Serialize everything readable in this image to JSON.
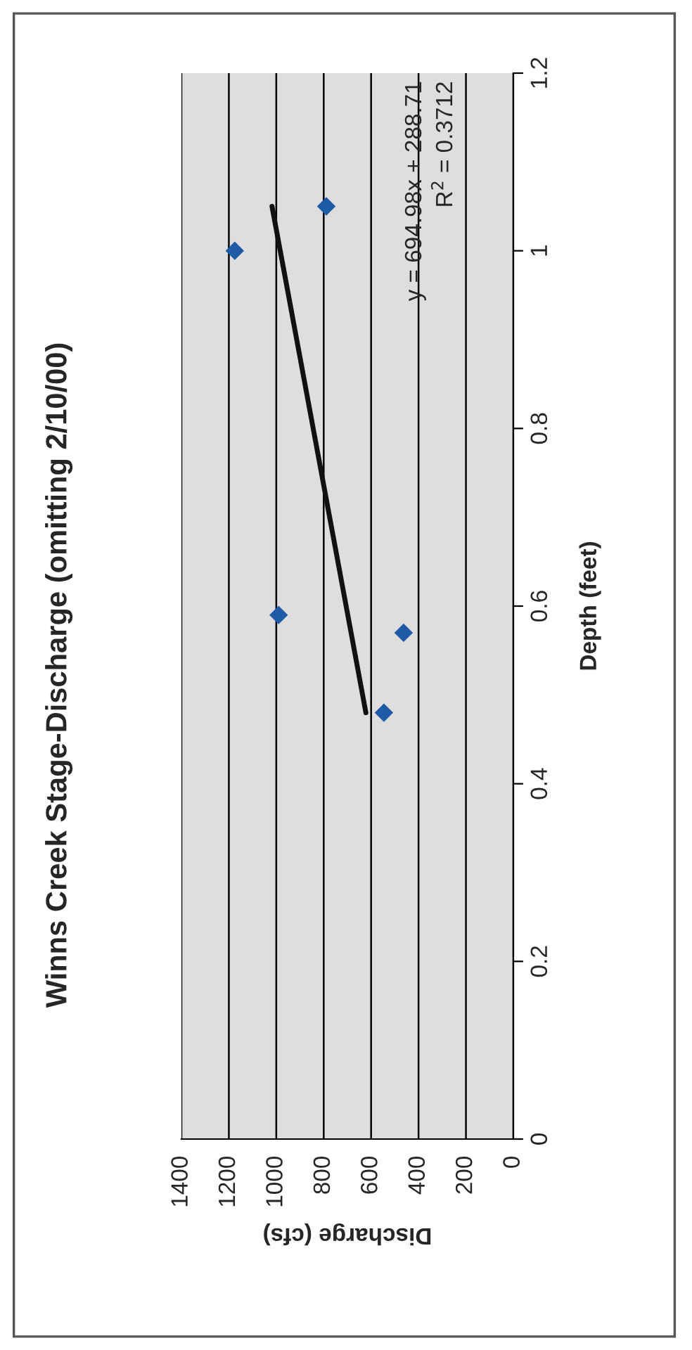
{
  "chart_data": {
    "type": "scatter",
    "title": "Winns Creek Stage-Discharge (omitting 2/10/00)",
    "xlabel": "Discharge (cfs)",
    "ylabel": "Depth (feet)",
    "xlim": [
      1400,
      0
    ],
    "xticks": [
      1400,
      1200,
      1000,
      800,
      600,
      400,
      200,
      0
    ],
    "ylim": [
      0,
      1.2
    ],
    "yticks": [
      0,
      0.2,
      0.4,
      0.6,
      0.8,
      1,
      1.2
    ],
    "grid": "x",
    "marker": "diamond",
    "series": [
      {
        "color": "#1f5aa6",
        "x": [
          1175,
          789,
          990,
          463,
          546
        ],
        "values": [
          1.0,
          1.05,
          0.59,
          0.57,
          0.48
        ]
      },
      {
        "type": "line",
        "color": "#111111",
        "marker": "none",
        "x": [
          622,
          1018
        ],
        "values": [
          0.48,
          1.05
        ]
      }
    ],
    "annotations": [
      "y = 694.98x + 288.71",
      "R$^{2}$ = 0.3712"
    ]
  }
}
